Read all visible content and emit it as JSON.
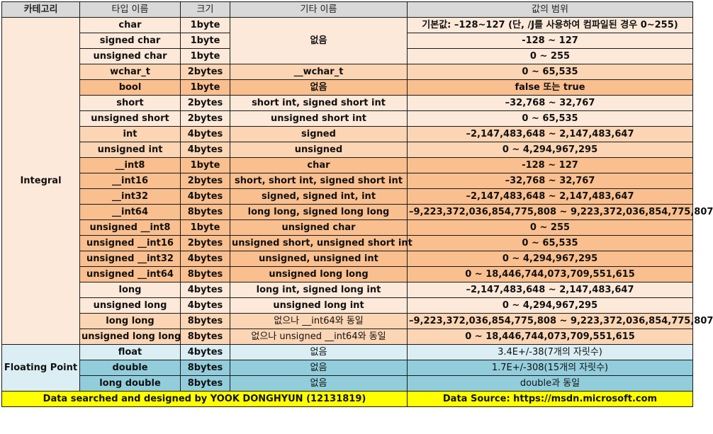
{
  "headers": [
    "카테고리",
    "타입 이름",
    "크기",
    "기타 이름",
    "값의 범위"
  ],
  "categories": {
    "integral": "Integral",
    "floating": "Floating Point"
  },
  "rows": [
    {
      "type": "char",
      "size": "1byte",
      "other": "없음",
      "range": "기본값: –128~127 (단, /J를 사용하여 컴파일된 경우 0~255)"
    },
    {
      "type": "signed char",
      "size": "1byte",
      "range": "-128 ~ 127"
    },
    {
      "type": "unsigned char",
      "size": "1byte",
      "range": "0 ~ 255"
    },
    {
      "type": "wchar_t",
      "size": "2bytes",
      "other": "__wchar_t",
      "range": "0 ~ 65,535"
    },
    {
      "type": "bool",
      "size": "1byte",
      "other": "없음",
      "range": "false 또는 true"
    },
    {
      "type": "short",
      "size": "2bytes",
      "other": "short int, signed short int",
      "range": "–32,768 ~ 32,767"
    },
    {
      "type": "unsigned short",
      "size": "2bytes",
      "other": "unsigned short int",
      "range": "0 ~ 65,535"
    },
    {
      "type": "int",
      "size": "4bytes",
      "other": "signed",
      "range": "–2,147,483,648 ~ 2,147,483,647"
    },
    {
      "type": "unsigned int",
      "size": "4bytes",
      "other": "unsigned",
      "range": "0 ~ 4,294,967,295"
    },
    {
      "type": "__int8",
      "size": "1byte",
      "other": "char",
      "range": "-128 ~ 127"
    },
    {
      "type": "__int16",
      "size": "2bytes",
      "other": "short, short int, signed short int",
      "range": "–32,768 ~ 32,767"
    },
    {
      "type": "__int32",
      "size": "4bytes",
      "other": "signed, signed int, int",
      "range": "–2,147,483,648 ~ 2,147,483,647"
    },
    {
      "type": "__int64",
      "size": "8bytes",
      "other": "long long, signed long long",
      "range": "–9,223,372,036,854,775,808 ~ 9,223,372,036,854,775,807"
    },
    {
      "type": "unsigned __int8",
      "size": "1byte",
      "other": "unsigned char",
      "range": "0 ~ 255"
    },
    {
      "type": "unsigned __int16",
      "size": "2bytes",
      "other": "unsigned short, unsigned short int",
      "range": "0 ~ 65,535"
    },
    {
      "type": "unsigned __int32",
      "size": "4bytes",
      "other": "unsigned, unsigned int",
      "range": "0 ~ 4,294,967,295"
    },
    {
      "type": "unsigned __int64",
      "size": "8bytes",
      "other": "unsigned long long",
      "range": "0 ~ 18,446,744,073,709,551,615"
    },
    {
      "type": "long",
      "size": "4bytes",
      "other": "long int, signed long int",
      "range": "–2,147,483,648 ~ 2,147,483,647"
    },
    {
      "type": "unsigned long",
      "size": "4bytes",
      "other": "unsigned long int",
      "range": "0 ~ 4,294,967,295"
    },
    {
      "type": "long long",
      "size": "8bytes",
      "other": "없으나 __int64와 동일",
      "range": "–9,223,372,036,854,775,808 ~ 9,223,372,036,854,775,807"
    },
    {
      "type": "unsigned long long",
      "size": "8bytes",
      "other": "없으나 unsigned __int64와 동일",
      "range": "0 ~ 18,446,744,073,709,551,615"
    },
    {
      "type": "float",
      "size": "4bytes",
      "other": "없음",
      "range": "3.4E+/-38(7개의 자릿수)"
    },
    {
      "type": "double",
      "size": "8bytes",
      "other": "없음",
      "range": "1.7E+/-308(15개의 자릿수)"
    },
    {
      "type": "long double",
      "size": "8bytes",
      "other": "없음",
      "range": "double과 동일"
    }
  ],
  "footer": {
    "credit": "Data searched and designed by YOOK DONGHYUN (12131819)",
    "source": "Data Source: https://msdn.microsoft.com"
  }
}
